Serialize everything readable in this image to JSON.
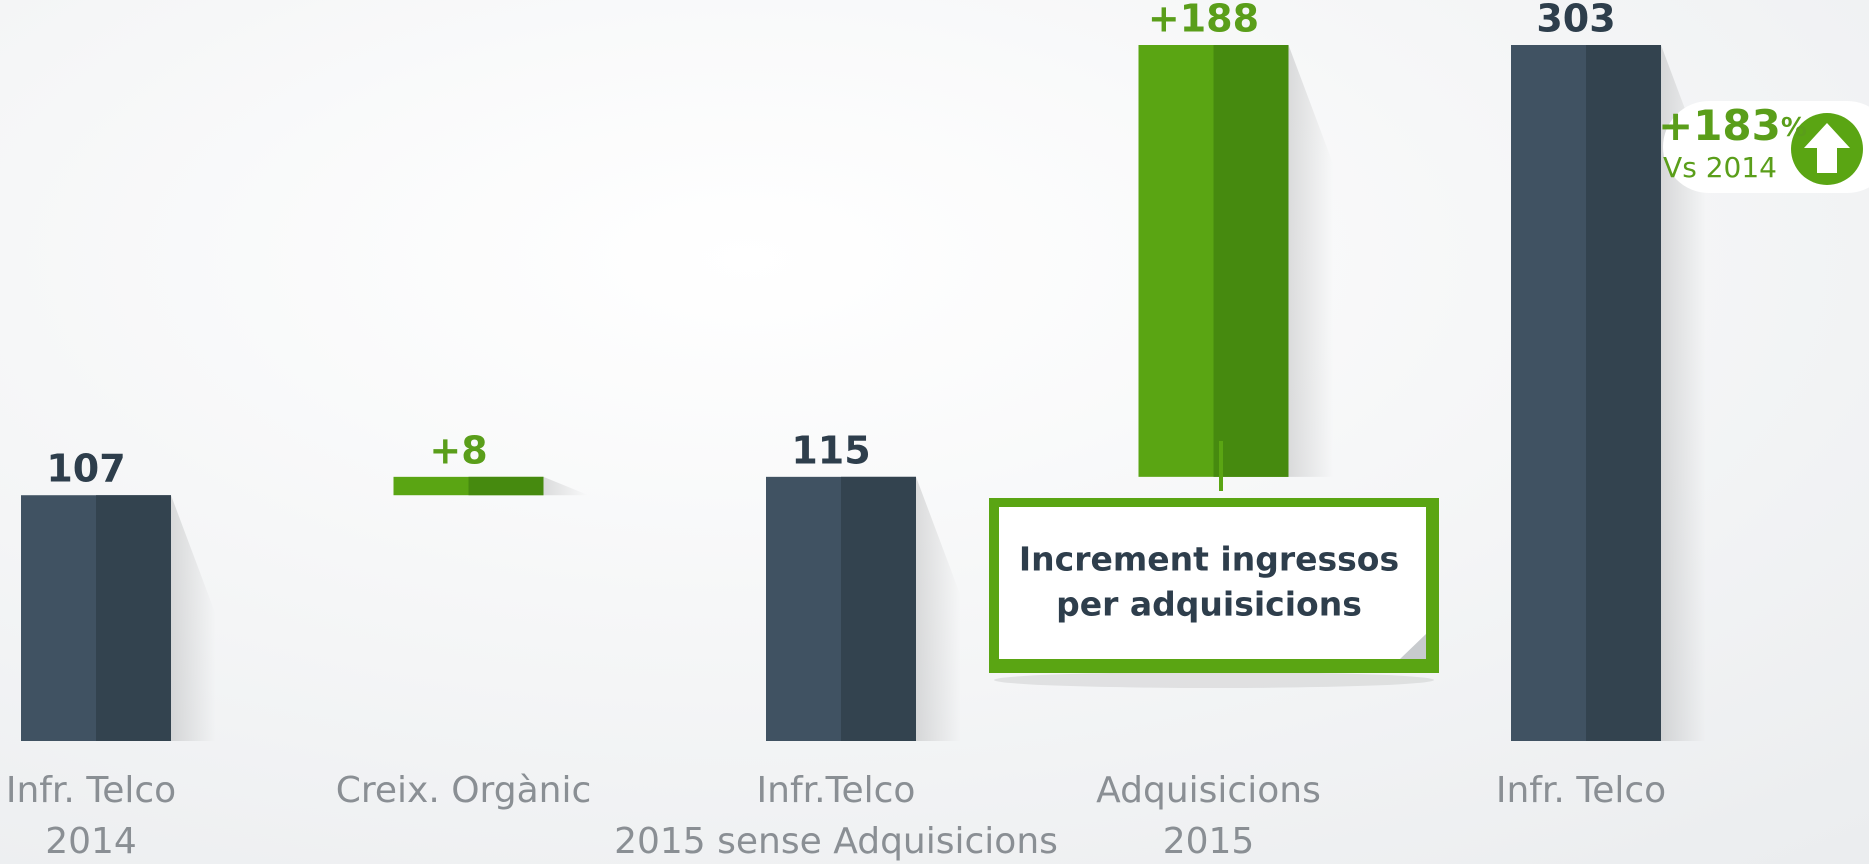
{
  "chart_data": {
    "type": "waterfall",
    "categories": [
      [
        "Infr. Telco",
        "2014"
      ],
      [
        "Creix. Orgànic"
      ],
      [
        "Infr.Telco",
        "2015 sense Adquisicions"
      ],
      [
        "Adquisicions",
        "2015"
      ],
      [
        "Infr. Telco"
      ]
    ],
    "kinds": [
      "total",
      "increase",
      "total",
      "increase",
      "total"
    ],
    "values": [
      107,
      8,
      115,
      188,
      303
    ],
    "value_labels": [
      "107",
      "+8",
      "115",
      "+188",
      "303"
    ],
    "colors": {
      "total": "#405262",
      "increase": "#5aa513"
    },
    "label_colors": {
      "total": "#2e3e4c",
      "increase": "#5a9e1a"
    },
    "ylim": [
      0,
      303
    ],
    "annotation": {
      "lines": [
        "Increment ingressos",
        "per adquisicions"
      ]
    },
    "badge": {
      "label": "+183",
      "unit": "%",
      "caption": "Vs 2014"
    }
  }
}
